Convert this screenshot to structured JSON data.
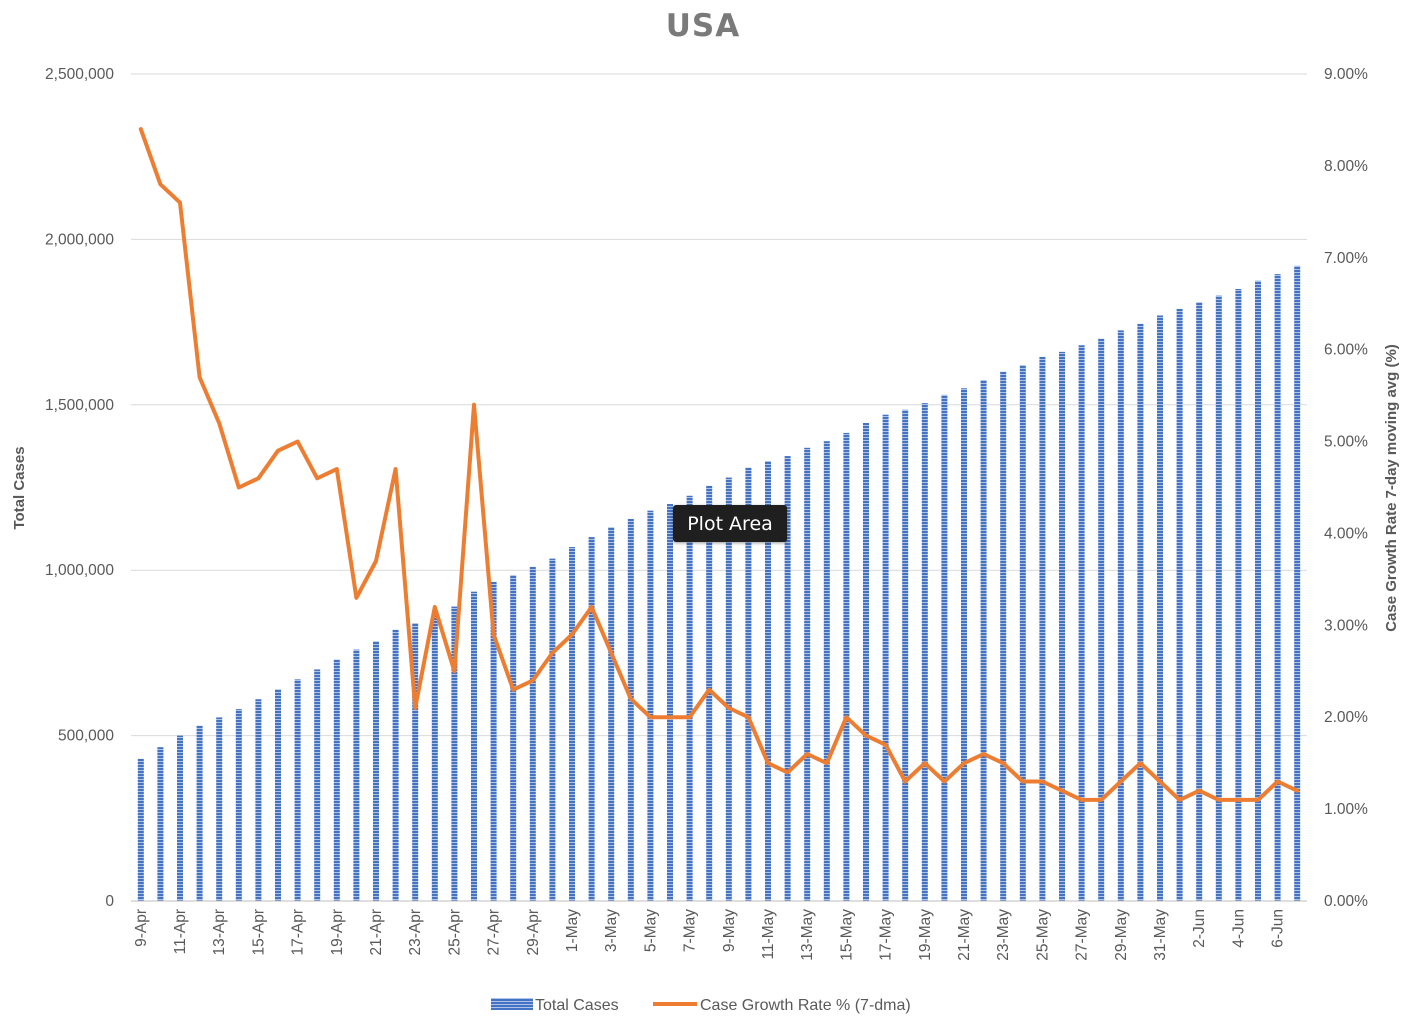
{
  "colors": {
    "bar": "#4472c4",
    "line": "#ed7d31",
    "grid": "#d9d9d9",
    "text": "#595959",
    "title": "#7a7a7a"
  },
  "tooltip": {
    "label": "Plot Area"
  },
  "chart_data": {
    "type": "bar",
    "title": "USA",
    "xlabel": "",
    "ylabel": "Total Cases",
    "y2label": "Case Growth Rate 7-day moving avg (%)",
    "ylim": [
      0,
      2500000
    ],
    "y2lim": [
      0,
      9
    ],
    "yticks": [
      "0",
      "500,000",
      "1,000,000",
      "1,500,000",
      "2,000,000",
      "2,500,000"
    ],
    "y2ticks": [
      "0.00%",
      "1.00%",
      "2.00%",
      "3.00%",
      "4.00%",
      "5.00%",
      "6.00%",
      "7.00%",
      "8.00%",
      "9.00%"
    ],
    "grid": true,
    "legend_position": "bottom",
    "categories": [
      "9-Apr",
      "10-Apr",
      "11-Apr",
      "12-Apr",
      "13-Apr",
      "14-Apr",
      "15-Apr",
      "16-Apr",
      "17-Apr",
      "18-Apr",
      "19-Apr",
      "20-Apr",
      "21-Apr",
      "22-Apr",
      "23-Apr",
      "24-Apr",
      "25-Apr",
      "26-Apr",
      "27-Apr",
      "28-Apr",
      "29-Apr",
      "30-Apr",
      "1-May",
      "2-May",
      "3-May",
      "4-May",
      "5-May",
      "6-May",
      "7-May",
      "8-May",
      "9-May",
      "10-May",
      "11-May",
      "12-May",
      "13-May",
      "14-May",
      "15-May",
      "16-May",
      "17-May",
      "18-May",
      "19-May",
      "20-May",
      "21-May",
      "22-May",
      "23-May",
      "24-May",
      "25-May",
      "26-May",
      "27-May",
      "28-May",
      "29-May",
      "30-May",
      "31-May",
      "1-Jun",
      "2-Jun",
      "3-Jun",
      "4-Jun",
      "5-Jun",
      "6-Jun",
      "7-Jun"
    ],
    "tick_labels": [
      "9-Apr",
      "11-Apr",
      "13-Apr",
      "15-Apr",
      "17-Apr",
      "19-Apr",
      "21-Apr",
      "23-Apr",
      "25-Apr",
      "27-Apr",
      "29-Apr",
      "1-May",
      "3-May",
      "5-May",
      "7-May",
      "9-May",
      "11-May",
      "13-May",
      "15-May",
      "17-May",
      "19-May",
      "21-May",
      "23-May",
      "25-May",
      "27-May",
      "29-May",
      "31-May",
      "2-Jun",
      "4-Jun",
      "6-Jun"
    ],
    "series": [
      {
        "name": "Total Cases",
        "type": "bar",
        "axis": "left",
        "values": [
          430000,
          465000,
          500000,
          530000,
          555000,
          580000,
          610000,
          640000,
          670000,
          700000,
          730000,
          760000,
          785000,
          820000,
          840000,
          865000,
          890000,
          935000,
          965000,
          985000,
          1010000,
          1035000,
          1070000,
          1100000,
          1130000,
          1155000,
          1180000,
          1200000,
          1225000,
          1255000,
          1280000,
          1310000,
          1330000,
          1345000,
          1370000,
          1390000,
          1415000,
          1445000,
          1470000,
          1485000,
          1505000,
          1530000,
          1550000,
          1575000,
          1600000,
          1620000,
          1645000,
          1660000,
          1680000,
          1700000,
          1725000,
          1745000,
          1770000,
          1790000,
          1810000,
          1830000,
          1850000,
          1875000,
          1895000,
          1920000
        ]
      },
      {
        "name": "Case Growth Rate % (7-dma)",
        "type": "line",
        "axis": "right",
        "values": [
          8.4,
          7.8,
          7.6,
          5.7,
          5.2,
          4.5,
          4.6,
          4.9,
          5.0,
          4.6,
          4.7,
          3.3,
          3.7,
          4.7,
          2.1,
          3.2,
          2.5,
          5.4,
          2.9,
          2.3,
          2.4,
          2.7,
          2.9,
          3.2,
          2.7,
          2.2,
          2.0,
          2.0,
          2.0,
          2.3,
          2.1,
          2.0,
          1.5,
          1.4,
          1.6,
          1.5,
          2.0,
          1.8,
          1.7,
          1.3,
          1.5,
          1.3,
          1.5,
          1.6,
          1.5,
          1.3,
          1.3,
          1.2,
          1.1,
          1.1,
          1.3,
          1.5,
          1.3,
          1.1,
          1.2,
          1.1,
          1.1,
          1.1,
          1.3,
          1.2
        ]
      }
    ]
  }
}
